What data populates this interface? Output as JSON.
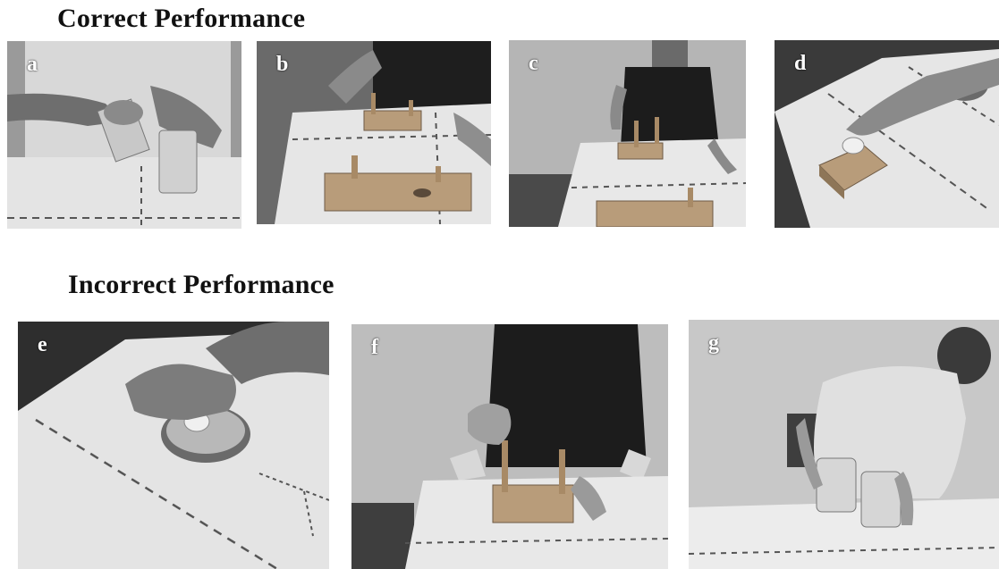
{
  "sections": {
    "correct": {
      "title": "Correct Performance"
    },
    "incorrect": {
      "title": "Incorrect Performance"
    }
  },
  "photos": [
    {
      "label": "a",
      "subject": "pouring water between two glasses"
    },
    {
      "label": "b",
      "subject": "moving peg on pegboard"
    },
    {
      "label": "c",
      "subject": "placing peg on board"
    },
    {
      "label": "d",
      "subject": "placing ring on peg"
    },
    {
      "label": "e",
      "subject": "pressing ring into dish"
    },
    {
      "label": "f",
      "subject": "grasping peg with fist"
    },
    {
      "label": "g",
      "subject": "holding two glasses"
    }
  ],
  "colors": {
    "heading": "#111111",
    "label": "#ffffff"
  }
}
